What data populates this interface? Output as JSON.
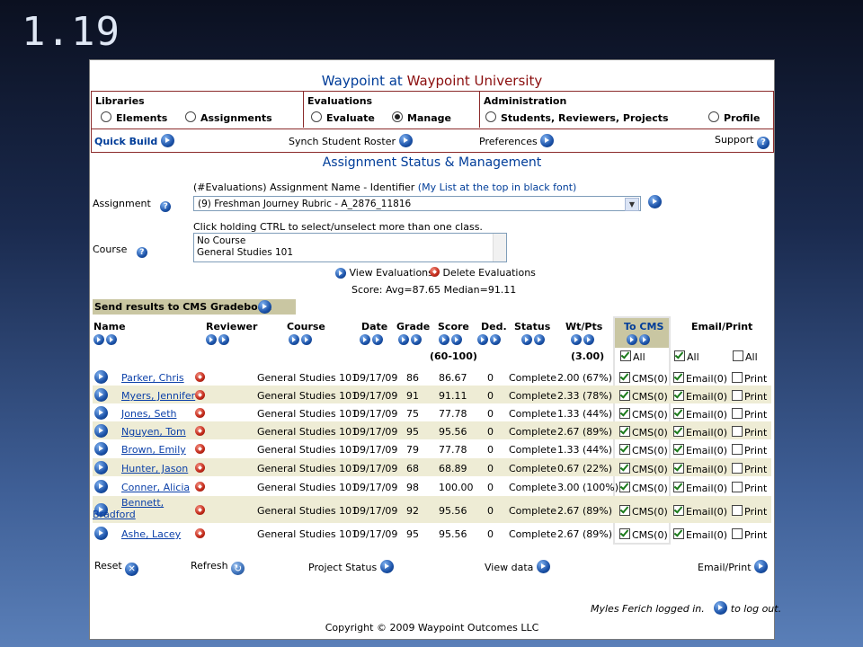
{
  "slide_number": "1.19",
  "app": {
    "title_part1": "Waypoint at ",
    "title_part2": "Waypoint University"
  },
  "menu": {
    "libraries": {
      "header": "Libraries",
      "elements": "Elements",
      "assignments": "Assignments"
    },
    "evaluations": {
      "header": "Evaluations",
      "evaluate": "Evaluate",
      "manage": "Manage",
      "selected": "Manage"
    },
    "administration": {
      "header": "Administration",
      "students": "Students, Reviewers, Projects",
      "profile": "Profile"
    },
    "quick_build": "Quick Build",
    "synch_roster": "Synch Student Roster",
    "preferences": "Preferences",
    "support": "Support"
  },
  "page_title": "Assignment Status & Management",
  "assignment": {
    "hint_prefix": "(#Evaluations) Assignment Name - Identifier ",
    "hint_link": "(My List at the top in black font)",
    "label": "Assignment",
    "selected": "(9) Freshman Journey Rubric - A_2876_11816"
  },
  "course": {
    "hint": "Click holding CTRL to select/unselect more than one class.",
    "label": "Course",
    "options": [
      "No Course",
      "General Studies 101"
    ]
  },
  "actions": {
    "view": "View Evaluations",
    "delete": "Delete Evaluations"
  },
  "score_summary": "Score: Avg=87.65  Median=91.11",
  "cms_bar": "Send results to CMS Gradebook",
  "columns": {
    "name": "Name",
    "reviewer": "Reviewer",
    "course": "Course",
    "date": "Date",
    "grade": "Grade",
    "score": "Score",
    "ded": "Ded.",
    "status": "Status",
    "wtpts": "Wt/Pts",
    "tocms": "To CMS",
    "emailprint": "Email/Print",
    "score_range": "(60-100)",
    "wt_total": "(3.00)",
    "all": "All"
  },
  "rows": [
    {
      "name": "Parker, Chris",
      "course": "General Studies 101",
      "date": "09/17/09",
      "grade": "86",
      "score": "86.67",
      "ded": "0",
      "status": "Complete",
      "wt": "2.00 (67%)",
      "cms": "CMS(0)",
      "email": "Email(0)",
      "print": "Print"
    },
    {
      "name": "Myers, Jennifer",
      "course": "General Studies 101",
      "date": "09/17/09",
      "grade": "91",
      "score": "91.11",
      "ded": "0",
      "status": "Complete",
      "wt": "2.33 (78%)",
      "cms": "CMS(0)",
      "email": "Email(0)",
      "print": "Print"
    },
    {
      "name": "Jones, Seth",
      "course": "General Studies 101",
      "date": "09/17/09",
      "grade": "75",
      "score": "77.78",
      "ded": "0",
      "status": "Complete",
      "wt": "1.33 (44%)",
      "cms": "CMS(0)",
      "email": "Email(0)",
      "print": "Print"
    },
    {
      "name": "Nguyen, Tom",
      "course": "General Studies 101",
      "date": "09/17/09",
      "grade": "95",
      "score": "95.56",
      "ded": "0",
      "status": "Complete",
      "wt": "2.67 (89%)",
      "cms": "CMS(0)",
      "email": "Email(0)",
      "print": "Print"
    },
    {
      "name": "Brown, Emily",
      "course": "General Studies 101",
      "date": "09/17/09",
      "grade": "79",
      "score": "77.78",
      "ded": "0",
      "status": "Complete",
      "wt": "1.33 (44%)",
      "cms": "CMS(0)",
      "email": "Email(0)",
      "print": "Print"
    },
    {
      "name": "Hunter, Jason",
      "course": "General Studies 101",
      "date": "09/17/09",
      "grade": "68",
      "score": "68.89",
      "ded": "0",
      "status": "Complete",
      "wt": "0.67 (22%)",
      "cms": "CMS(0)",
      "email": "Email(0)",
      "print": "Print"
    },
    {
      "name": "Conner, Alicia",
      "course": "General Studies 101",
      "date": "09/17/09",
      "grade": "98",
      "score": "100.00",
      "ded": "0",
      "status": "Complete",
      "wt": "3.00 (100%)",
      "cms": "CMS(0)",
      "email": "Email(0)",
      "print": "Print"
    },
    {
      "name": "Bennett, Bradford",
      "course": "General Studies 101",
      "date": "09/17/09",
      "grade": "92",
      "score": "95.56",
      "ded": "0",
      "status": "Complete",
      "wt": "2.67 (89%)",
      "cms": "CMS(0)",
      "email": "Email(0)",
      "print": "Print"
    },
    {
      "name": "Ashe, Lacey",
      "course": "General Studies 101",
      "date": "09/17/09",
      "grade": "95",
      "score": "95.56",
      "ded": "0",
      "status": "Complete",
      "wt": "2.67 (89%)",
      "cms": "CMS(0)",
      "email": "Email(0)",
      "print": "Print"
    }
  ],
  "footer": {
    "reset": "Reset",
    "refresh": "Refresh",
    "project_status": "Project Status",
    "view_data": "View data",
    "email_print": "Email/Print",
    "logged_in": "Myles Ferich logged in.",
    "logout": "to log out.",
    "copyright": "Copyright © 2009 Waypoint Outcomes LLC"
  },
  "colors": {
    "brand_blue": "#003d99",
    "brand_maroon": "#8b0e0e",
    "row_alt": "#eeecd5",
    "bar": "#c9c6a2"
  }
}
